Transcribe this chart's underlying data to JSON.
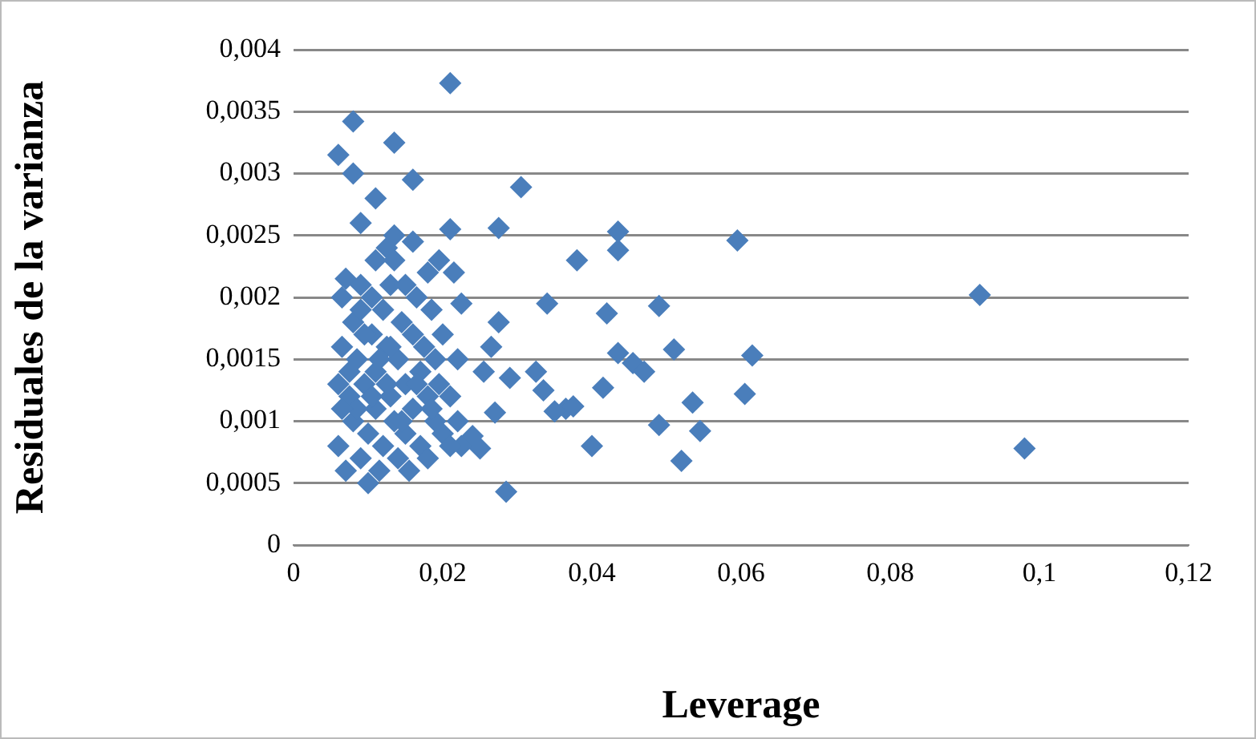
{
  "chart_data": {
    "type": "scatter",
    "xlabel": "Leverage",
    "ylabel": "Residuales de la varianza",
    "marker": "diamond",
    "grid": "y",
    "legend": false,
    "xlim": [
      0,
      0.12
    ],
    "xticks": [
      {
        "value": 0,
        "label": "0"
      },
      {
        "value": 0.02,
        "label": "0,02"
      },
      {
        "value": 0.04,
        "label": "0,04"
      },
      {
        "value": 0.06,
        "label": "0,06"
      },
      {
        "value": 0.08,
        "label": "0,08"
      },
      {
        "value": 0.1,
        "label": "0,1"
      },
      {
        "value": 0.12,
        "label": "0,12"
      }
    ],
    "ylim": [
      0,
      0.004
    ],
    "yticks": [
      {
        "value": 0,
        "label": "0"
      },
      {
        "value": 0.0005,
        "label": "0,0005"
      },
      {
        "value": 0.001,
        "label": "0,001"
      },
      {
        "value": 0.0015,
        "label": "0,0015"
      },
      {
        "value": 0.002,
        "label": "0,002"
      },
      {
        "value": 0.0025,
        "label": "0,0025"
      },
      {
        "value": 0.003,
        "label": "0,003"
      },
      {
        "value": 0.0035,
        "label": "0,0035"
      },
      {
        "value": 0.004,
        "label": "0,004"
      }
    ],
    "series": [
      {
        "color": "#4a7ebb",
        "x": [
          0.021,
          0.008,
          0.0135,
          0.006,
          0.008,
          0.016,
          0.0305,
          0.011,
          0.009,
          0.021,
          0.0275,
          0.0435,
          0.0595,
          0.038,
          0.0435,
          0.0135,
          0.016,
          0.0125,
          0.0195,
          0.0215,
          0.0225,
          0.034,
          0.042,
          0.049,
          0.092,
          0.0275,
          0.0435,
          0.051,
          0.0615,
          0.0265,
          0.0455,
          0.047,
          0.0325,
          0.0335,
          0.0255,
          0.029,
          0.0365,
          0.035,
          0.0375,
          0.0415,
          0.0605,
          0.0535,
          0.027,
          0.04,
          0.049,
          0.0545,
          0.052,
          0.098,
          0.0285,
          0.024,
          0.025,
          0.0225,
          0.006,
          0.006,
          0.0065,
          0.007,
          0.0065,
          0.007,
          0.0075,
          0.008,
          0.008,
          0.0085,
          0.009,
          0.009,
          0.0095,
          0.01,
          0.01,
          0.0105,
          0.0105,
          0.011,
          0.011,
          0.0115,
          0.012,
          0.012,
          0.0125,
          0.013,
          0.013,
          0.0135,
          0.014,
          0.014,
          0.0145,
          0.015,
          0.015,
          0.0155,
          0.016,
          0.016,
          0.0165,
          0.017,
          0.017,
          0.0175,
          0.018,
          0.018,
          0.0185,
          0.019,
          0.019,
          0.0195,
          0.02,
          0.02,
          0.021,
          0.021,
          0.022,
          0.022,
          0.0075,
          0.0085,
          0.0095,
          0.0115,
          0.0125,
          0.0145,
          0.0165,
          0.0185,
          0.009,
          0.011,
          0.0135,
          0.015,
          0.018,
          0.0065,
          0.0105,
          0.013
        ],
        "values": [
          0.00373,
          0.00342,
          0.00325,
          0.00315,
          0.003,
          0.00295,
          0.00289,
          0.0028,
          0.0026,
          0.00255,
          0.00256,
          0.00253,
          0.00246,
          0.0023,
          0.00238,
          0.0025,
          0.00245,
          0.0024,
          0.0023,
          0.0022,
          0.00195,
          0.00195,
          0.00187,
          0.00193,
          0.00202,
          0.0018,
          0.00155,
          0.00158,
          0.00153,
          0.0016,
          0.00147,
          0.0014,
          0.0014,
          0.00125,
          0.0014,
          0.00135,
          0.0011,
          0.00108,
          0.00112,
          0.00127,
          0.00122,
          0.00115,
          0.00107,
          0.0008,
          0.00097,
          0.00092,
          0.00068,
          0.00078,
          0.00043,
          0.00088,
          0.00078,
          0.0008,
          0.0013,
          0.0008,
          0.002,
          0.00215,
          0.0016,
          0.0006,
          0.0012,
          0.0018,
          0.001,
          0.0015,
          0.0007,
          0.0021,
          0.0013,
          0.0005,
          0.0009,
          0.0017,
          0.002,
          0.0011,
          0.0014,
          0.0006,
          0.0019,
          0.0008,
          0.0016,
          0.0012,
          0.0021,
          0.001,
          0.0007,
          0.0015,
          0.0018,
          0.0013,
          0.0009,
          0.0006,
          0.0017,
          0.0011,
          0.002,
          0.0014,
          0.0008,
          0.0016,
          0.0012,
          0.0007,
          0.0019,
          0.001,
          0.0015,
          0.0013,
          0.0009,
          0.0017,
          0.0012,
          0.0008,
          0.0015,
          0.001,
          0.0014,
          0.0011,
          0.0017,
          0.0015,
          0.0013,
          0.001,
          0.0013,
          0.0011,
          0.0019,
          0.0023,
          0.0023,
          0.0021,
          0.0022,
          0.0011,
          0.0012,
          0.0016
        ]
      }
    ]
  }
}
